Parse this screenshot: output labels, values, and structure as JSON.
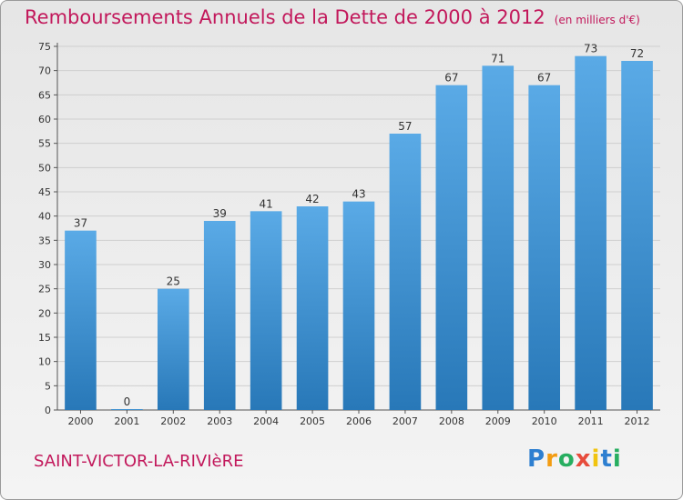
{
  "header": {
    "title": "Remboursements Annuels de la Dette de 2000 à 2012",
    "subtitle": "(en milliers d'€)"
  },
  "footer": {
    "commune": "SAINT-VICTOR-LA-RIVIèRE",
    "logo_letters": [
      "P",
      "r",
      "o",
      "x",
      "i",
      "t",
      "i"
    ],
    "logo_colors": [
      "#2e7fd0",
      "#f39c12",
      "#27ae60",
      "#e74c3c",
      "#f1c40f",
      "#2e7fd0",
      "#27ae60"
    ]
  },
  "colors": {
    "bar_top": "#5aaae6",
    "bar_bottom": "#2878b8",
    "title": "#c2185b",
    "grid": "#cfcfcf"
  },
  "chart_data": {
    "type": "bar",
    "title": "Remboursements Annuels de la Dette de 2000 à 2012",
    "subtitle": "(en milliers d'€)",
    "categories": [
      "2000",
      "2001",
      "2002",
      "2003",
      "2004",
      "2005",
      "2006",
      "2007",
      "2008",
      "2009",
      "2010",
      "2011",
      "2012"
    ],
    "values": [
      37,
      0,
      25,
      39,
      41,
      42,
      43,
      57,
      67,
      71,
      67,
      73,
      72
    ],
    "ylim": [
      0,
      75
    ],
    "yticks": [
      0,
      5,
      10,
      15,
      20,
      25,
      30,
      35,
      40,
      45,
      50,
      55,
      60,
      65,
      70,
      75
    ],
    "grid": true,
    "xlabel": "",
    "ylabel": ""
  }
}
